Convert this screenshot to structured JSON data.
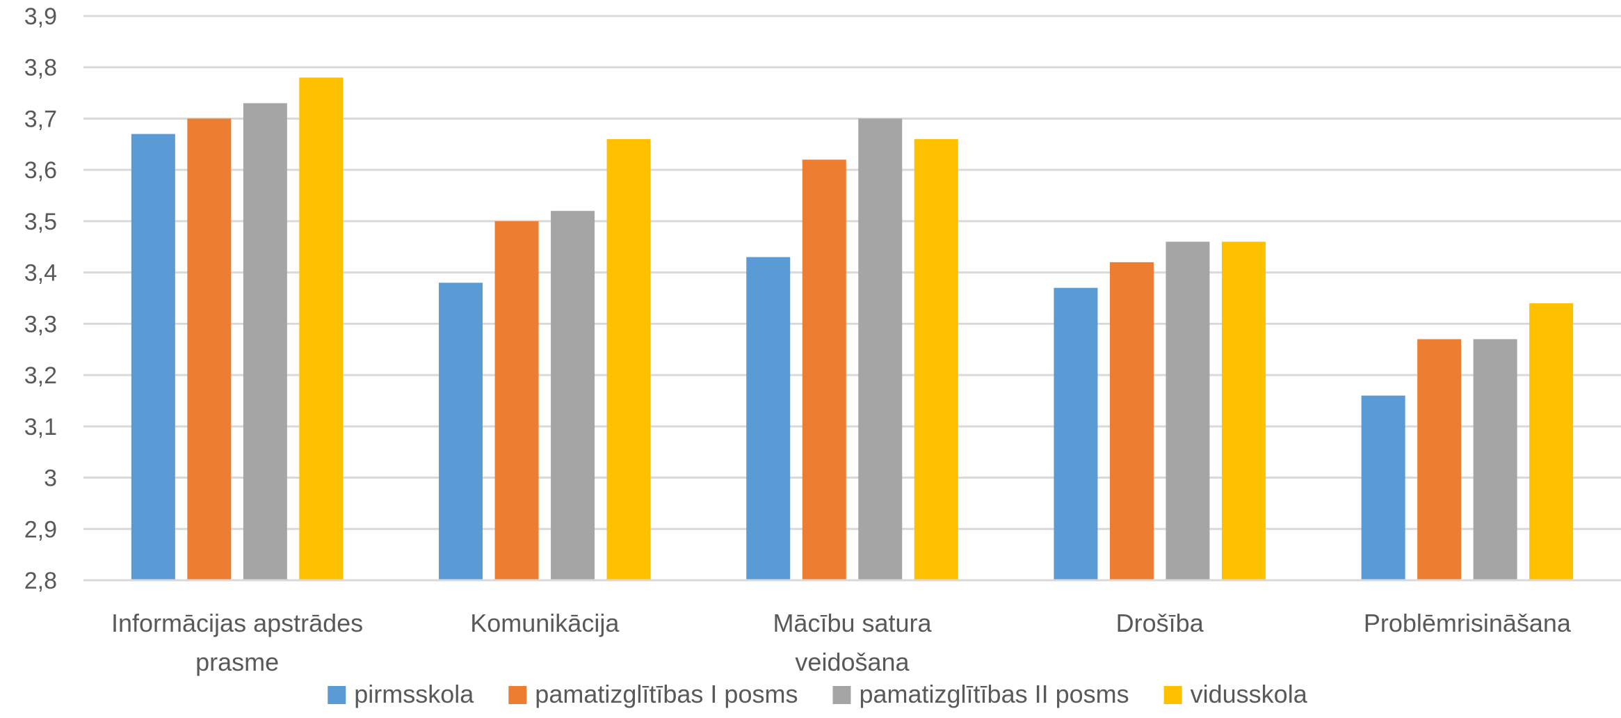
{
  "chart_data": {
    "type": "bar",
    "categories": [
      [
        "Informācijas apstrādes",
        "prasme"
      ],
      [
        "Komunikācija"
      ],
      [
        "Mācību satura",
        "veidošana"
      ],
      [
        "Drošība"
      ],
      [
        "Problēmrisināšana"
      ]
    ],
    "series": [
      {
        "name": "pirmsskola",
        "color": "#5b9bd5",
        "values": [
          3.67,
          3.38,
          3.43,
          3.37,
          3.16
        ]
      },
      {
        "name": "pamatizglītības I posms",
        "color": "#ed7d31",
        "values": [
          3.7,
          3.5,
          3.62,
          3.42,
          3.27
        ]
      },
      {
        "name": "pamatizglītības II posms",
        "color": "#a5a5a5",
        "values": [
          3.73,
          3.52,
          3.7,
          3.46,
          3.27
        ]
      },
      {
        "name": "vidusskola",
        "color": "#ffc000",
        "values": [
          3.78,
          3.66,
          3.66,
          3.46,
          3.34
        ]
      }
    ],
    "ylim": [
      2.8,
      3.9
    ],
    "yticks": [
      "2,8",
      "2,9",
      "3",
      "3,1",
      "3,2",
      "3,3",
      "3,4",
      "3,5",
      "3,6",
      "3,7",
      "3,8",
      "3,9"
    ],
    "grid": true,
    "legend_position": "bottom"
  }
}
